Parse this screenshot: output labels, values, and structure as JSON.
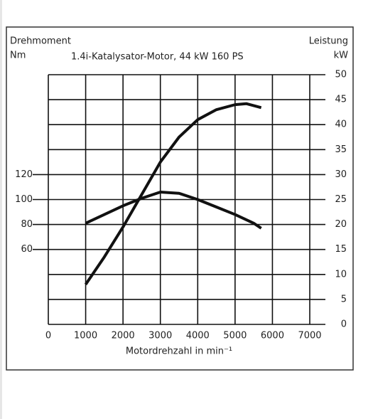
{
  "chart_data": {
    "type": "line",
    "left_label_top": "Drehmoment",
    "left_unit": "Nm",
    "right_label_top": "Leistung",
    "right_unit": "kW",
    "subtitle": "1.4i-Katalysator-Motor, 44 kW 160 PS",
    "x_label": "Motordrehzahl in min⁻¹",
    "xlim": [
      0,
      7000
    ],
    "xticks": [
      0,
      1000,
      2000,
      3000,
      4000,
      5000,
      6000,
      7000
    ],
    "ylim": [
      0,
      200
    ],
    "yticks": [
      60,
      80,
      100,
      120
    ],
    "y2lim": [
      0,
      50
    ],
    "y2ticks": [
      0,
      5,
      10,
      15,
      20,
      25,
      30,
      35,
      40,
      45,
      50
    ],
    "grid": true,
    "series": [
      {
        "color": "#111111",
        "axis": "y",
        "x": [
          1000,
          1500,
          2000,
          2500,
          3000,
          3500,
          4000,
          4500,
          5000,
          5500,
          5700
        ],
        "values": [
          81,
          88,
          95,
          101,
          106,
          105,
          100,
          94,
          88,
          81,
          77
        ]
      },
      {
        "color": "#111111",
        "axis": "y2",
        "x": [
          1000,
          1500,
          2000,
          2500,
          3000,
          3500,
          4000,
          4500,
          5000,
          5300,
          5700
        ],
        "values": [
          8,
          13.5,
          19.5,
          26,
          32.5,
          37.5,
          41,
          43,
          44,
          44.2,
          43.4
        ]
      }
    ]
  }
}
